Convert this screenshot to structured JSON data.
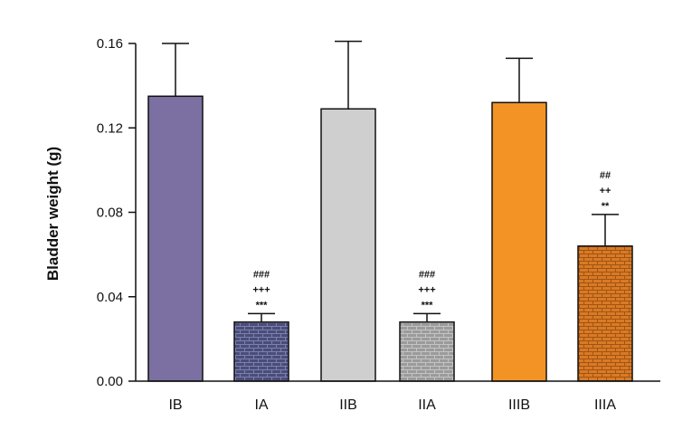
{
  "chart_data": {
    "type": "bar",
    "title": "",
    "xlabel": "",
    "ylabel": "Bladder weight (g)",
    "ylim": [
      0,
      0.16
    ],
    "yticks": [
      "0.00",
      "0.04",
      "0.08",
      "0.12",
      "0.16"
    ],
    "categories": [
      "IB",
      "IA",
      "IIB",
      "IIA",
      "IIIB",
      "IIIA"
    ],
    "values": [
      0.135,
      0.028,
      0.129,
      0.028,
      0.132,
      0.064
    ],
    "errors": [
      0.025,
      0.004,
      0.032,
      0.004,
      0.021,
      0.015
    ],
    "annotations": [
      [],
      [
        "###",
        "+++",
        "***"
      ],
      [],
      [
        "###",
        "+++",
        "***"
      ],
      [],
      [
        "##",
        "++",
        "**"
      ]
    ],
    "colors": [
      "#7b70a1",
      "#4a4d79",
      "#d0cfcf",
      "#9b9b9b",
      "#f39325",
      "#d97a25"
    ],
    "patterns": [
      "solid",
      "brick",
      "solid",
      "brick",
      "solid",
      "brick"
    ],
    "grid": false,
    "legend": "none"
  }
}
